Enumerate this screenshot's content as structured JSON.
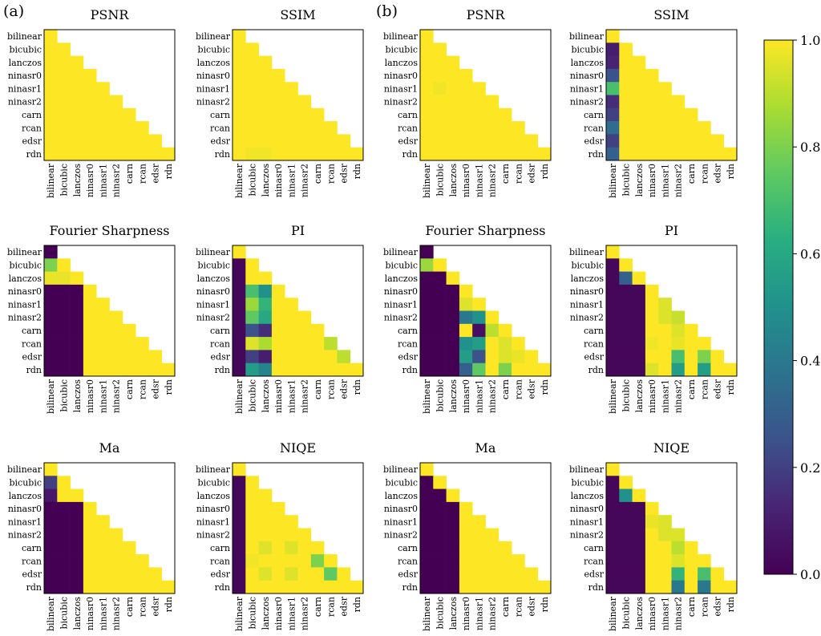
{
  "panel_labels": [
    "(a)",
    "(b)"
  ],
  "labels": [
    "bilinear",
    "bicubic",
    "lanczos",
    "ninasr0",
    "ninasr1",
    "ninasr2",
    "carn",
    "rcan",
    "edsr",
    "rdn"
  ],
  "colorbar": {
    "min": 0.0,
    "max": 1.0,
    "ticks": [
      "0.0",
      "0.2",
      "0.4",
      "0.6",
      "0.8",
      "1.0"
    ],
    "colormap": "viridis"
  },
  "chart_data": [
    {
      "type": "heatmap",
      "panel": "(a)",
      "title": "PSNR",
      "fill": 1.0,
      "cells": []
    },
    {
      "type": "heatmap",
      "panel": "(a)",
      "title": "SSIM",
      "fill": 1.0,
      "cells": [
        [
          9,
          1,
          0.98
        ],
        [
          9,
          2,
          0.98
        ]
      ]
    },
    {
      "type": "heatmap",
      "panel": "(b)",
      "title": "PSNR",
      "fill": 1.0,
      "cells": [
        [
          4,
          1,
          0.98
        ]
      ]
    },
    {
      "type": "heatmap",
      "panel": "(b)",
      "title": "SSIM",
      "fill": 1.0,
      "cells": [
        [
          1,
          0,
          0.1
        ],
        [
          2,
          0,
          0.12
        ],
        [
          3,
          0,
          0.25
        ],
        [
          4,
          0,
          0.7
        ],
        [
          5,
          0,
          0.15
        ],
        [
          6,
          0,
          0.2
        ],
        [
          7,
          0,
          0.35
        ],
        [
          8,
          0,
          0.2
        ],
        [
          9,
          0,
          0.3
        ]
      ]
    },
    {
      "type": "heatmap",
      "panel": "(a)",
      "title": "Fourier Sharpness",
      "fill": 0.0,
      "cells": [
        [
          1,
          0,
          0.8
        ],
        [
          1,
          1,
          1
        ],
        [
          2,
          0,
          0.97
        ],
        [
          2,
          1,
          0.97
        ],
        [
          2,
          2,
          1
        ],
        [
          3,
          3,
          1
        ],
        [
          4,
          3,
          1
        ],
        [
          4,
          4,
          1
        ],
        [
          5,
          3,
          1
        ],
        [
          5,
          4,
          1
        ],
        [
          5,
          5,
          1
        ],
        [
          6,
          3,
          1
        ],
        [
          6,
          4,
          1
        ],
        [
          6,
          5,
          1
        ],
        [
          6,
          6,
          1
        ],
        [
          7,
          3,
          1
        ],
        [
          7,
          4,
          1
        ],
        [
          7,
          5,
          1
        ],
        [
          7,
          6,
          1
        ],
        [
          7,
          7,
          1
        ],
        [
          8,
          3,
          1
        ],
        [
          8,
          4,
          1
        ],
        [
          8,
          5,
          1
        ],
        [
          8,
          6,
          1
        ],
        [
          8,
          7,
          1
        ],
        [
          8,
          8,
          1
        ],
        [
          9,
          3,
          1
        ],
        [
          9,
          4,
          1
        ],
        [
          9,
          5,
          1
        ],
        [
          9,
          6,
          1
        ],
        [
          9,
          7,
          1
        ],
        [
          9,
          8,
          1
        ],
        [
          9,
          9,
          1
        ]
      ]
    },
    {
      "type": "heatmap",
      "panel": "(a)",
      "title": "PI",
      "fill": 1.0,
      "cells": [
        [
          1,
          0,
          0.02
        ],
        [
          2,
          0,
          0.02
        ],
        [
          3,
          0,
          0.02
        ],
        [
          4,
          0,
          0.02
        ],
        [
          5,
          0,
          0.02
        ],
        [
          6,
          0,
          0.02
        ],
        [
          7,
          0,
          0.02
        ],
        [
          8,
          0,
          0.02
        ],
        [
          9,
          0,
          0.02
        ],
        [
          3,
          1,
          0.7
        ],
        [
          3,
          2,
          0.5
        ],
        [
          4,
          1,
          0.85
        ],
        [
          4,
          2,
          0.65
        ],
        [
          5,
          1,
          0.75
        ],
        [
          5,
          2,
          0.6
        ],
        [
          6,
          1,
          0.25
        ],
        [
          6,
          2,
          0.15
        ],
        [
          7,
          1,
          0.95
        ],
        [
          7,
          2,
          0.88
        ],
        [
          8,
          1,
          0.2
        ],
        [
          8,
          2,
          0.1
        ],
        [
          9,
          1,
          0.55
        ],
        [
          9,
          2,
          0.45
        ],
        [
          7,
          7,
          0.9
        ],
        [
          8,
          8,
          0.9
        ]
      ]
    },
    {
      "type": "heatmap",
      "panel": "(b)",
      "title": "Fourier Sharpness",
      "fill": 0.0,
      "cells": [
        [
          1,
          0,
          0.85
        ],
        [
          1,
          1,
          1
        ],
        [
          2,
          2,
          1
        ],
        [
          3,
          3,
          1
        ],
        [
          4,
          3,
          0.95
        ],
        [
          4,
          4,
          1
        ],
        [
          5,
          3,
          0.4
        ],
        [
          5,
          4,
          0.5
        ],
        [
          5,
          5,
          1
        ],
        [
          6,
          3,
          1
        ],
        [
          6,
          4,
          0.05
        ],
        [
          6,
          5,
          0.9
        ],
        [
          6,
          6,
          1
        ],
        [
          7,
          3,
          0.5
        ],
        [
          7,
          4,
          0.55
        ],
        [
          7,
          5,
          1
        ],
        [
          7,
          6,
          0.95
        ],
        [
          7,
          7,
          1
        ],
        [
          8,
          3,
          0.55
        ],
        [
          8,
          4,
          0.25
        ],
        [
          8,
          5,
          1
        ],
        [
          8,
          6,
          0.95
        ],
        [
          8,
          7,
          0.97
        ],
        [
          8,
          8,
          1
        ],
        [
          9,
          3,
          0.3
        ],
        [
          9,
          4,
          0.75
        ],
        [
          9,
          5,
          1
        ],
        [
          9,
          6,
          0.8
        ],
        [
          9,
          7,
          1
        ],
        [
          9,
          8,
          1
        ],
        [
          9,
          9,
          1
        ]
      ]
    },
    {
      "type": "heatmap",
      "panel": "(b)",
      "title": "PI",
      "fill": 1.0,
      "cells": [
        [
          1,
          0,
          0.02
        ],
        [
          2,
          0,
          0.02
        ],
        [
          3,
          0,
          0.02
        ],
        [
          4,
          0,
          0.02
        ],
        [
          5,
          0,
          0.02
        ],
        [
          6,
          0,
          0.02
        ],
        [
          7,
          0,
          0.02
        ],
        [
          8,
          0,
          0.02
        ],
        [
          9,
          0,
          0.02
        ],
        [
          2,
          1,
          0.3
        ],
        [
          3,
          1,
          0.02
        ],
        [
          4,
          1,
          0.02
        ],
        [
          5,
          1,
          0.02
        ],
        [
          6,
          1,
          0.02
        ],
        [
          7,
          1,
          0.02
        ],
        [
          8,
          1,
          0.02
        ],
        [
          9,
          1,
          0.02
        ],
        [
          3,
          2,
          0.02
        ],
        [
          4,
          2,
          0.02
        ],
        [
          5,
          2,
          0.02
        ],
        [
          6,
          2,
          0.02
        ],
        [
          7,
          2,
          0.02
        ],
        [
          8,
          2,
          0.02
        ],
        [
          9,
          2,
          0.02
        ],
        [
          4,
          4,
          0.95
        ],
        [
          5,
          4,
          0.95
        ],
        [
          5,
          5,
          0.92
        ],
        [
          6,
          5,
          0.95
        ],
        [
          7,
          3,
          0.98
        ],
        [
          7,
          5,
          0.97
        ],
        [
          8,
          5,
          0.7
        ],
        [
          8,
          7,
          0.8
        ],
        [
          9,
          3,
          0.95
        ],
        [
          9,
          5,
          0.55
        ],
        [
          9,
          7,
          0.55
        ]
      ]
    },
    {
      "type": "heatmap",
      "panel": "(a)",
      "title": "Ma",
      "fill": 0.0,
      "cells": [
        [
          0,
          0,
          1
        ],
        [
          1,
          0,
          0.2
        ],
        [
          1,
          1,
          1
        ],
        [
          2,
          0,
          0.08
        ],
        [
          2,
          1,
          1
        ],
        [
          2,
          2,
          1
        ],
        [
          3,
          3,
          1
        ],
        [
          4,
          3,
          1
        ],
        [
          4,
          4,
          1
        ],
        [
          5,
          3,
          1
        ],
        [
          5,
          4,
          1
        ],
        [
          5,
          5,
          1
        ],
        [
          6,
          3,
          1
        ],
        [
          6,
          4,
          1
        ],
        [
          6,
          5,
          1
        ],
        [
          6,
          6,
          1
        ],
        [
          7,
          3,
          1
        ],
        [
          7,
          4,
          1
        ],
        [
          7,
          5,
          1
        ],
        [
          7,
          6,
          1
        ],
        [
          7,
          7,
          1
        ],
        [
          8,
          3,
          1
        ],
        [
          8,
          4,
          1
        ],
        [
          8,
          5,
          1
        ],
        [
          8,
          6,
          1
        ],
        [
          8,
          7,
          1
        ],
        [
          8,
          8,
          1
        ],
        [
          9,
          3,
          1
        ],
        [
          9,
          4,
          1
        ],
        [
          9,
          5,
          1
        ],
        [
          9,
          6,
          1
        ],
        [
          9,
          7,
          1
        ],
        [
          9,
          8,
          1
        ],
        [
          9,
          9,
          1
        ]
      ]
    },
    {
      "type": "heatmap",
      "panel": "(a)",
      "title": "NIQE",
      "fill": 1.0,
      "cells": [
        [
          1,
          0,
          0.02
        ],
        [
          2,
          0,
          0.02
        ],
        [
          3,
          0,
          0.02
        ],
        [
          4,
          0,
          0.02
        ],
        [
          5,
          0,
          0.02
        ],
        [
          6,
          0,
          0.02
        ],
        [
          7,
          0,
          0.02
        ],
        [
          8,
          0,
          0.02
        ],
        [
          9,
          0,
          0.02
        ],
        [
          6,
          2,
          0.95
        ],
        [
          6,
          4,
          0.95
        ],
        [
          7,
          1,
          0.98
        ],
        [
          7,
          6,
          0.8
        ],
        [
          8,
          2,
          0.95
        ],
        [
          8,
          4,
          0.95
        ],
        [
          8,
          7,
          0.75
        ]
      ]
    },
    {
      "type": "heatmap",
      "panel": "(b)",
      "title": "Ma",
      "fill": 0.0,
      "cells": [
        [
          0,
          0,
          1
        ],
        [
          1,
          1,
          1
        ],
        [
          2,
          2,
          1
        ],
        [
          3,
          3,
          1
        ],
        [
          4,
          3,
          1
        ],
        [
          4,
          4,
          1
        ],
        [
          5,
          3,
          1
        ],
        [
          5,
          4,
          1
        ],
        [
          5,
          5,
          1
        ],
        [
          6,
          3,
          1
        ],
        [
          6,
          4,
          1
        ],
        [
          6,
          5,
          1
        ],
        [
          6,
          6,
          1
        ],
        [
          7,
          3,
          1
        ],
        [
          7,
          4,
          1
        ],
        [
          7,
          5,
          1
        ],
        [
          7,
          6,
          1
        ],
        [
          7,
          7,
          1
        ],
        [
          8,
          3,
          1
        ],
        [
          8,
          4,
          1
        ],
        [
          8,
          5,
          1
        ],
        [
          8,
          6,
          1
        ],
        [
          8,
          7,
          1
        ],
        [
          8,
          8,
          1
        ],
        [
          9,
          3,
          1
        ],
        [
          9,
          4,
          1
        ],
        [
          9,
          5,
          1
        ],
        [
          9,
          6,
          1
        ],
        [
          9,
          7,
          1
        ],
        [
          9,
          8,
          1
        ],
        [
          9,
          9,
          1
        ]
      ]
    },
    {
      "type": "heatmap",
      "panel": "(b)",
      "title": "NIQE",
      "fill": 1.0,
      "cells": [
        [
          1,
          0,
          0.02
        ],
        [
          2,
          0,
          0.02
        ],
        [
          3,
          0,
          0.02
        ],
        [
          4,
          0,
          0.02
        ],
        [
          5,
          0,
          0.02
        ],
        [
          6,
          0,
          0.02
        ],
        [
          7,
          0,
          0.02
        ],
        [
          8,
          0,
          0.02
        ],
        [
          9,
          0,
          0.02
        ],
        [
          2,
          1,
          0.5
        ],
        [
          3,
          1,
          0.02
        ],
        [
          4,
          1,
          0.02
        ],
        [
          5,
          1,
          0.02
        ],
        [
          6,
          1,
          0.02
        ],
        [
          7,
          1,
          0.02
        ],
        [
          8,
          1,
          0.02
        ],
        [
          9,
          1,
          0.02
        ],
        [
          3,
          2,
          0.02
        ],
        [
          4,
          2,
          0.02
        ],
        [
          5,
          2,
          0.02
        ],
        [
          6,
          2,
          0.02
        ],
        [
          7,
          2,
          0.02
        ],
        [
          8,
          2,
          0.02
        ],
        [
          9,
          2,
          0.02
        ],
        [
          4,
          3,
          0.97
        ],
        [
          4,
          4,
          0.95
        ],
        [
          5,
          4,
          0.95
        ],
        [
          5,
          5,
          0.95
        ],
        [
          6,
          5,
          0.9
        ],
        [
          7,
          5,
          0.95
        ],
        [
          8,
          5,
          0.65
        ],
        [
          8,
          7,
          0.7
        ],
        [
          9,
          5,
          0.4
        ],
        [
          9,
          7,
          0.4
        ]
      ]
    }
  ]
}
